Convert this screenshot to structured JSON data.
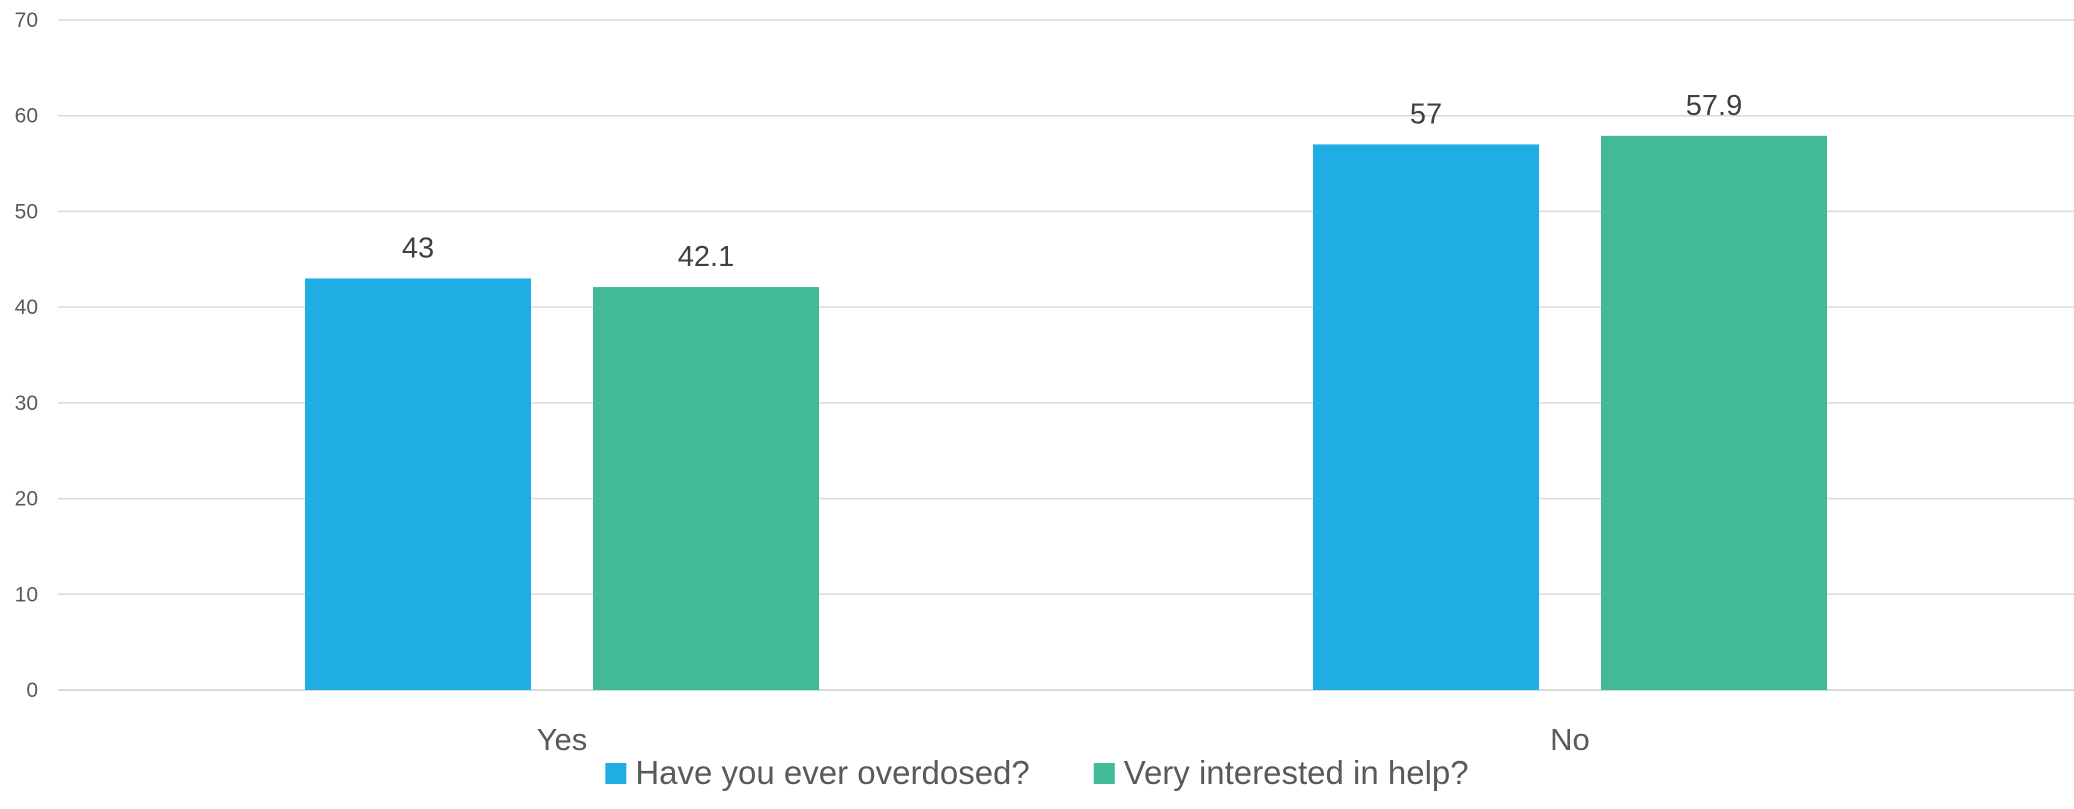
{
  "chart_data": {
    "type": "bar",
    "title": "",
    "xlabel": "",
    "ylabel": "",
    "categories": [
      "Yes",
      "No"
    ],
    "series": [
      {
        "name": "Have you ever overdosed?",
        "values": [
          43,
          57
        ],
        "labels": [
          "43",
          "57"
        ],
        "color": "#1fade3"
      },
      {
        "name": "Very interested in help?",
        "values": [
          42.1,
          57.9
        ],
        "labels": [
          "42.1",
          "57.9"
        ],
        "color": "#42ba98"
      }
    ],
    "ylim": [
      0,
      70
    ],
    "yticks": [
      "0",
      "10",
      "20",
      "30",
      "40",
      "50",
      "60",
      "70"
    ],
    "grid": true,
    "legend_position": "bottom"
  }
}
